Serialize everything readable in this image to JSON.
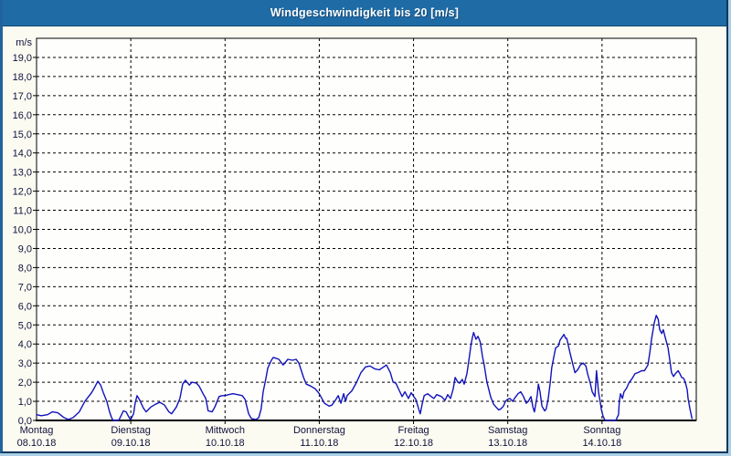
{
  "window": {
    "title": "Windgeschwindigkeit bis 20 [m/s]"
  },
  "colors": {
    "titlebar_bg": "#1f6ba6",
    "titlebar_text": "#ffffff",
    "frame_light": "#a9cfe6",
    "frame_dark": "#10375e",
    "content_bg": "#fbfbf2",
    "plot_bg": "#fefefc",
    "grid": "#000000",
    "axis": "#000000",
    "label": "#10103a",
    "line": "#1212bd"
  },
  "chart_data": {
    "type": "line",
    "title": "Windgeschwindigkeit bis 20 [m/s]",
    "ylabel": "m/s",
    "ylim": [
      0,
      20
    ],
    "xlim_hours": [
      0,
      168
    ],
    "grid": "black dashed; horizontal every 1 m/s, vertical at each day start",
    "legend": "none",
    "line_color": "#1212bd",
    "y_tick_labels": [
      "0,0",
      "1,0",
      "2,0",
      "3,0",
      "4,0",
      "5,0",
      "6,0",
      "7,0",
      "8,0",
      "9,0",
      "10,0",
      "11,0",
      "12,0",
      "13,0",
      "14,0",
      "15,0",
      "16,0",
      "17,0",
      "18,0",
      "19,0"
    ],
    "days": [
      {
        "label": "Montag",
        "date": "08.10.18"
      },
      {
        "label": "Dienstag",
        "date": "09.10.18"
      },
      {
        "label": "Mittwoch",
        "date": "10.10.18"
      },
      {
        "label": "Donnerstag",
        "date": "11.10.18"
      },
      {
        "label": "Freitag",
        "date": "12.10.18"
      },
      {
        "label": "Samstag",
        "date": "13.10.18"
      },
      {
        "label": "Sonntag",
        "date": "14.10.18"
      }
    ],
    "series": [
      {
        "name": "Windgeschwindigkeit",
        "unit": "m/s",
        "x_unit": "hours since Montag 08.10.18 00:00",
        "points": [
          [
            0,
            0.3
          ],
          [
            1.2,
            0.25
          ],
          [
            2.8,
            0.3
          ],
          [
            4,
            0.45
          ],
          [
            5.4,
            0.4
          ],
          [
            7,
            0.15
          ],
          [
            8.1,
            0.05
          ],
          [
            9.3,
            0.15
          ],
          [
            10.9,
            0.45
          ],
          [
            12.3,
            1
          ],
          [
            14,
            1.45
          ],
          [
            14.7,
            1.7
          ],
          [
            15.6,
            2.05
          ],
          [
            16.3,
            1.85
          ],
          [
            17,
            1.45
          ],
          [
            17.9,
            1
          ],
          [
            18.6,
            0.45
          ],
          [
            19.1,
            0.15
          ],
          [
            19.5,
            0
          ],
          [
            20.9,
            0
          ],
          [
            21.4,
            0.2
          ],
          [
            22.1,
            0.5
          ],
          [
            22.8,
            0.45
          ],
          [
            23.7,
            0.1
          ],
          [
            24,
            0.05
          ],
          [
            24.7,
            0.35
          ],
          [
            25.1,
            0.9
          ],
          [
            25.6,
            1.3
          ],
          [
            26.3,
            1.05
          ],
          [
            27.2,
            0.65
          ],
          [
            27.9,
            0.45
          ],
          [
            29.1,
            0.7
          ],
          [
            30.3,
            0.85
          ],
          [
            31.4,
            0.95
          ],
          [
            32.6,
            0.8
          ],
          [
            33.7,
            0.45
          ],
          [
            34.4,
            0.35
          ],
          [
            35.6,
            0.7
          ],
          [
            36.5,
            1.15
          ],
          [
            37.2,
            1.9
          ],
          [
            37.9,
            2.1
          ],
          [
            38.9,
            1.85
          ],
          [
            39.6,
            2
          ],
          [
            40.7,
            1.95
          ],
          [
            41.4,
            1.8
          ],
          [
            42.4,
            1.4
          ],
          [
            43.1,
            1.15
          ],
          [
            43.7,
            0.5
          ],
          [
            44.7,
            0.45
          ],
          [
            45.4,
            0.7
          ],
          [
            46.5,
            1.25
          ],
          [
            47.2,
            1.3
          ],
          [
            48,
            1.3
          ],
          [
            48.9,
            1.35
          ],
          [
            50,
            1.4
          ],
          [
            51.2,
            1.35
          ],
          [
            52.4,
            1.3
          ],
          [
            53.1,
            1.1
          ],
          [
            54,
            0.35
          ],
          [
            54.7,
            0.1
          ],
          [
            55.9,
            0.05
          ],
          [
            56.6,
            0.15
          ],
          [
            57.2,
            0.6
          ],
          [
            57.7,
            1.5
          ],
          [
            58.4,
            2.2
          ],
          [
            58.9,
            2.75
          ],
          [
            59.8,
            3.15
          ],
          [
            60.3,
            3.3
          ],
          [
            61,
            3.25
          ],
          [
            61.7,
            3.2
          ],
          [
            62.8,
            2.9
          ],
          [
            64,
            3.2
          ],
          [
            65.2,
            3.15
          ],
          [
            66.1,
            3.2
          ],
          [
            66.8,
            3
          ],
          [
            68,
            2.25
          ],
          [
            68.7,
            1.9
          ],
          [
            69.8,
            1.8
          ],
          [
            71,
            1.65
          ],
          [
            72,
            1.4
          ],
          [
            73.3,
            0.9
          ],
          [
            74.5,
            0.75
          ],
          [
            75.2,
            0.8
          ],
          [
            76.1,
            1.05
          ],
          [
            76.8,
            1.3
          ],
          [
            77.5,
            0.9
          ],
          [
            78.2,
            1.4
          ],
          [
            78.7,
            1
          ],
          [
            79.1,
            1.3
          ],
          [
            80.3,
            1.55
          ],
          [
            81.5,
            2
          ],
          [
            82.6,
            2.5
          ],
          [
            83.8,
            2.8
          ],
          [
            84.9,
            2.85
          ],
          [
            86.1,
            2.7
          ],
          [
            87.3,
            2.65
          ],
          [
            88,
            2.75
          ],
          [
            89.1,
            2.9
          ],
          [
            90.1,
            2.5
          ],
          [
            90.8,
            2
          ],
          [
            91.5,
            1.95
          ],
          [
            92.4,
            1.55
          ],
          [
            93.1,
            1.25
          ],
          [
            93.8,
            1.5
          ],
          [
            94.7,
            1.15
          ],
          [
            95.4,
            1.45
          ],
          [
            95.9,
            1.3
          ],
          [
            96.6,
            1.1
          ],
          [
            97.3,
            0.6
          ],
          [
            97.7,
            0.35
          ],
          [
            98.2,
            0.85
          ],
          [
            98.7,
            1.3
          ],
          [
            99.6,
            1.4
          ],
          [
            100.5,
            1.25
          ],
          [
            101.2,
            1.15
          ],
          [
            101.9,
            1.35
          ],
          [
            103.1,
            1.25
          ],
          [
            104,
            1.05
          ],
          [
            104.7,
            1.35
          ],
          [
            105.4,
            1.15
          ],
          [
            106.1,
            1.65
          ],
          [
            106.6,
            2.25
          ],
          [
            107.3,
            2
          ],
          [
            107.7,
            1.95
          ],
          [
            108.4,
            2.15
          ],
          [
            108.9,
            1.9
          ],
          [
            109.6,
            2.45
          ],
          [
            110,
            3
          ],
          [
            110.6,
            3.9
          ],
          [
            111,
            4.35
          ],
          [
            111.3,
            4.6
          ],
          [
            111.9,
            4.25
          ],
          [
            112.4,
            4.4
          ],
          [
            113,
            4.1
          ],
          [
            113.6,
            3.3
          ],
          [
            114,
            2.9
          ],
          [
            114.7,
            2
          ],
          [
            115.7,
            1.2
          ],
          [
            116.4,
            0.85
          ],
          [
            117,
            0.7
          ],
          [
            117.7,
            0.55
          ],
          [
            118.2,
            0.6
          ],
          [
            118.9,
            0.75
          ],
          [
            119.4,
            1
          ],
          [
            119.9,
            1.1
          ],
          [
            120.5,
            1.15
          ],
          [
            121.3,
            1
          ],
          [
            121.7,
            1.15
          ],
          [
            122.6,
            1.4
          ],
          [
            123.3,
            1.5
          ],
          [
            124,
            1.25
          ],
          [
            124.7,
            0.9
          ],
          [
            125.2,
            1
          ],
          [
            125.9,
            1.25
          ],
          [
            126.4,
            0.7
          ],
          [
            126.8,
            0.45
          ],
          [
            127.5,
            1.3
          ],
          [
            127.8,
            1.9
          ],
          [
            128.2,
            1.5
          ],
          [
            128.7,
            0.75
          ],
          [
            129.4,
            0.5
          ],
          [
            129.8,
            0.6
          ],
          [
            130.3,
            1.15
          ],
          [
            130.8,
            1.95
          ],
          [
            131.2,
            2.75
          ],
          [
            131.7,
            3.3
          ],
          [
            132.2,
            3.8
          ],
          [
            132.9,
            3.9
          ],
          [
            133.3,
            4.2
          ],
          [
            134.3,
            4.5
          ],
          [
            134.7,
            4.3
          ],
          [
            135,
            4.3
          ],
          [
            135.9,
            3.5
          ],
          [
            136.6,
            2.9
          ],
          [
            137.1,
            2.5
          ],
          [
            137.8,
            2.65
          ],
          [
            138.5,
            2.9
          ],
          [
            139.2,
            3
          ],
          [
            139.9,
            2.85
          ],
          [
            140.3,
            2.45
          ],
          [
            141,
            1.95
          ],
          [
            141.5,
            1.5
          ],
          [
            142.2,
            1.25
          ],
          [
            142.6,
            2.6
          ],
          [
            143.1,
            1.5
          ],
          [
            143.6,
            0.9
          ],
          [
            143.8,
            0.6
          ],
          [
            144.3,
            0.2
          ],
          [
            144.8,
            0
          ],
          [
            147.5,
            0
          ],
          [
            148.2,
            0.3
          ],
          [
            148.4,
            1
          ],
          [
            148.7,
            1.4
          ],
          [
            149.2,
            1.15
          ],
          [
            149.6,
            1.5
          ],
          [
            150.3,
            1.7
          ],
          [
            150.8,
            1.95
          ],
          [
            151.7,
            2.2
          ],
          [
            152.4,
            2.45
          ],
          [
            153.1,
            2.5
          ],
          [
            154.1,
            2.6
          ],
          [
            154.8,
            2.6
          ],
          [
            155.7,
            2.9
          ],
          [
            156.2,
            3.6
          ],
          [
            156.6,
            4.25
          ],
          [
            157.3,
            5.1
          ],
          [
            157.8,
            5.5
          ],
          [
            158.3,
            5.3
          ],
          [
            158.7,
            4.75
          ],
          [
            159.2,
            4.55
          ],
          [
            159.6,
            4.75
          ],
          [
            160.1,
            4.35
          ],
          [
            160.8,
            3.8
          ],
          [
            161.3,
            3.1
          ],
          [
            161.7,
            2.5
          ],
          [
            162.2,
            2.3
          ],
          [
            162.7,
            2.45
          ],
          [
            163.4,
            2.6
          ],
          [
            163.8,
            2.45
          ],
          [
            164.3,
            2.25
          ],
          [
            164.8,
            2.2
          ],
          [
            165.2,
            2
          ],
          [
            165.7,
            1.6
          ],
          [
            165.9,
            1.15
          ],
          [
            166.4,
            0.6
          ],
          [
            166.9,
            0.1
          ]
        ]
      }
    ]
  }
}
